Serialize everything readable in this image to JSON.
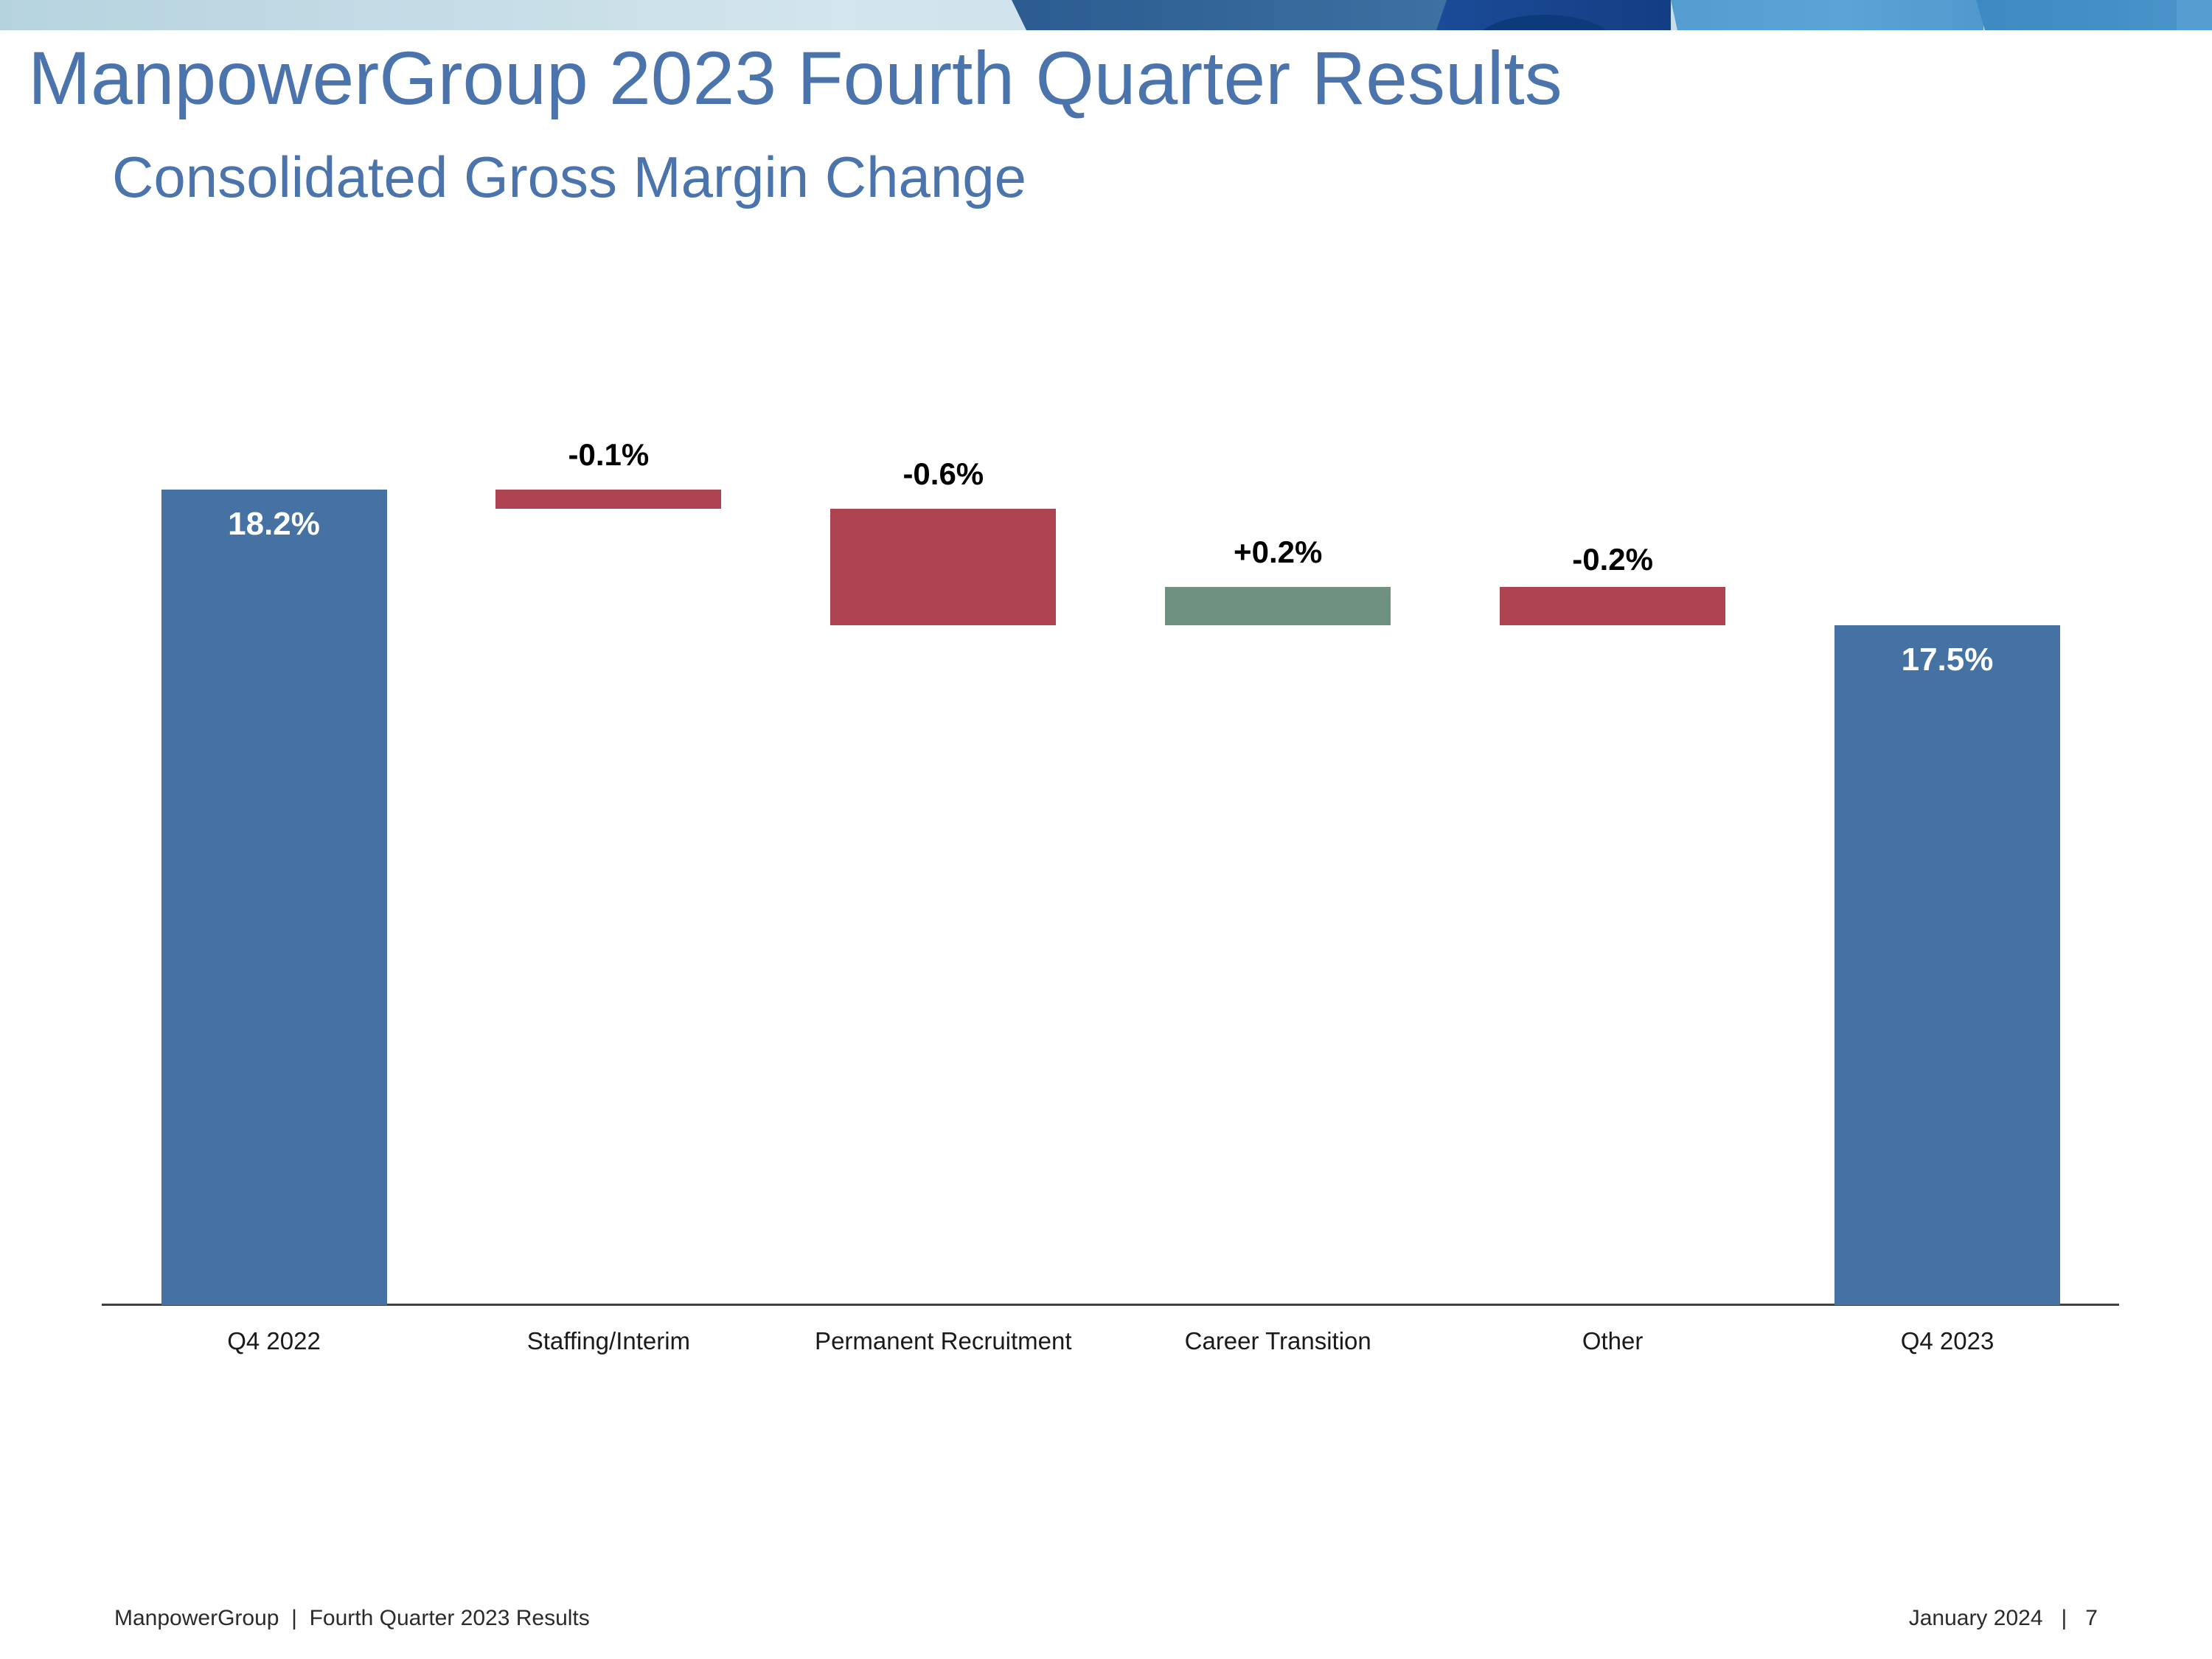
{
  "slide": {
    "title": "ManpowerGroup 2023 Fourth Quarter Results",
    "subtitle": "Consolidated Gross Margin Change",
    "footer_left": "ManpowerGroup  |  Fourth Quarter 2023 Results",
    "footer_right": "January 2024   |   7"
  },
  "colors": {
    "title_text": "#4a74ab",
    "bar_total": "#4672a3",
    "bar_decrease": "#ad4350",
    "bar_increase": "#6f9180",
    "total_label_text": "#ffffff",
    "delta_label_text": "#000000",
    "axis_line": "#3f3f3f",
    "category_text": "#1a1a1a",
    "footer_text": "#2b2b2b"
  },
  "chart_data": {
    "type": "bar",
    "subtype": "waterfall",
    "title": "Consolidated Gross Margin Change",
    "unit": "%",
    "categories": [
      "Q4 2022",
      "Staffing/Interim",
      "Permanent Recruitment",
      "Career Transition",
      "Other",
      "Q4 2023"
    ],
    "values": [
      18.2,
      -0.1,
      -0.6,
      0.2,
      -0.2,
      17.5
    ],
    "bar_kinds": [
      "total",
      "decrease",
      "decrease",
      "increase",
      "decrease",
      "total"
    ],
    "labels": [
      "18.2%",
      "-0.1%",
      "-0.6%",
      "+0.2%",
      "-0.2%",
      "17.5%"
    ],
    "start_value": 18.2,
    "end_value": 17.5,
    "layout_hints": {
      "gridlines": false,
      "y_axis_visible": false,
      "x_baseline_visible": true,
      "legend": "none",
      "total_labels_inside_bars": true,
      "delta_labels_above_bars": true
    }
  }
}
